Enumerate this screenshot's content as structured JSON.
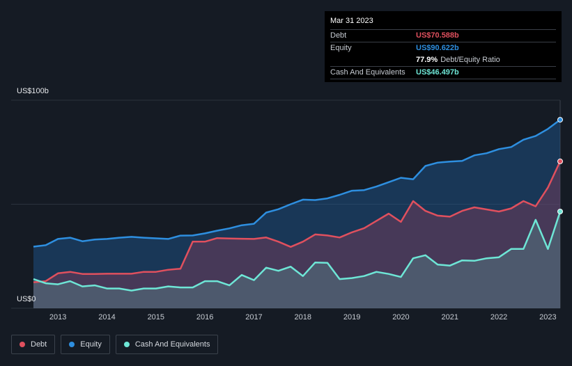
{
  "tooltip": {
    "date": "Mar 31 2023",
    "debt_label": "Debt",
    "debt_value": "US$70.588b",
    "equity_label": "Equity",
    "equity_value": "US$90.622b",
    "ratio_value": "77.9%",
    "ratio_label": "Debt/Equity Ratio",
    "cash_label": "Cash And Equivalents",
    "cash_value": "US$46.497b"
  },
  "colors": {
    "debt": "#e0505e",
    "equity": "#2e8fe0",
    "cash": "#6ee6d6",
    "background": "#151b24"
  },
  "legend": [
    {
      "label": "Debt",
      "color": "#e0505e"
    },
    {
      "label": "Equity",
      "color": "#2e8fe0"
    },
    {
      "label": "Cash And Equivalents",
      "color": "#6ee6d6"
    }
  ],
  "chart_data": {
    "type": "area",
    "ylabel_top": "US$100b",
    "ylabel_bottom": "US$0",
    "ylim": [
      0,
      100
    ],
    "xlim": [
      2012.5,
      2023.25
    ],
    "x_ticks": [
      "2013",
      "2014",
      "2015",
      "2016",
      "2017",
      "2018",
      "2019",
      "2020",
      "2021",
      "2022",
      "2023"
    ],
    "grid": true,
    "legend_position": "bottom-left",
    "series": [
      {
        "name": "Equity",
        "x": [
          2012.5,
          2012.75,
          2013.0,
          2013.25,
          2013.5,
          2013.75,
          2014.0,
          2014.25,
          2014.5,
          2014.75,
          2015.0,
          2015.25,
          2015.5,
          2015.75,
          2016.0,
          2016.25,
          2016.5,
          2016.75,
          2017.0,
          2017.25,
          2017.5,
          2017.75,
          2018.0,
          2018.25,
          2018.5,
          2018.75,
          2019.0,
          2019.25,
          2019.5,
          2019.75,
          2020.0,
          2020.25,
          2020.5,
          2020.75,
          2021.0,
          2021.25,
          2021.5,
          2021.75,
          2022.0,
          2022.25,
          2022.5,
          2022.75,
          2023.0,
          2023.25
        ],
        "values": [
          29.6,
          30.3,
          33.3,
          33.9,
          32.2,
          33.0,
          33.3,
          33.9,
          34.3,
          33.9,
          33.6,
          33.3,
          34.9,
          35.0,
          36.0,
          37.3,
          38.4,
          39.9,
          40.6,
          46.0,
          47.6,
          50.0,
          52.2,
          52.0,
          52.8,
          54.5,
          56.5,
          56.8,
          58.5,
          60.6,
          62.7,
          62.0,
          68.4,
          70.0,
          70.5,
          70.8,
          73.5,
          74.5,
          76.5,
          77.5,
          81.0,
          82.8,
          86.2,
          90.6
        ]
      },
      {
        "name": "Debt",
        "x": [
          2012.5,
          2012.75,
          2013.0,
          2013.25,
          2013.5,
          2013.75,
          2014.0,
          2014.25,
          2014.5,
          2014.75,
          2015.0,
          2015.25,
          2015.5,
          2015.75,
          2016.0,
          2016.25,
          2016.5,
          2016.75,
          2017.0,
          2017.25,
          2017.5,
          2017.75,
          2018.0,
          2018.25,
          2018.5,
          2018.75,
          2019.0,
          2019.25,
          2019.5,
          2019.75,
          2020.0,
          2020.25,
          2020.5,
          2020.75,
          2021.0,
          2021.25,
          2021.5,
          2021.75,
          2022.0,
          2022.25,
          2022.5,
          2022.75,
          2023.0,
          2023.25
        ],
        "values": [
          12.5,
          13.0,
          16.8,
          17.5,
          16.5,
          16.5,
          16.6,
          16.6,
          16.6,
          17.5,
          17.5,
          18.5,
          19.0,
          32.0,
          32.0,
          33.7,
          33.5,
          33.4,
          33.3,
          34.0,
          32.0,
          29.5,
          32.0,
          35.5,
          35.0,
          34.0,
          36.5,
          38.5,
          42.0,
          45.5,
          41.5,
          51.5,
          46.8,
          44.5,
          44.0,
          46.8,
          48.5,
          47.5,
          46.5,
          48.0,
          51.5,
          49.0,
          58.0,
          70.6
        ]
      },
      {
        "name": "Cash And Equivalents",
        "x": [
          2012.5,
          2012.75,
          2013.0,
          2013.25,
          2013.5,
          2013.75,
          2014.0,
          2014.25,
          2014.5,
          2014.75,
          2015.0,
          2015.25,
          2015.5,
          2015.75,
          2016.0,
          2016.25,
          2016.5,
          2016.75,
          2017.0,
          2017.25,
          2017.5,
          2017.75,
          2018.0,
          2018.25,
          2018.5,
          2018.75,
          2019.0,
          2019.25,
          2019.5,
          2019.75,
          2020.0,
          2020.25,
          2020.5,
          2020.75,
          2021.0,
          2021.25,
          2021.5,
          2021.75,
          2022.0,
          2022.25,
          2022.5,
          2022.75,
          2023.0,
          2023.25
        ],
        "values": [
          14.0,
          12.0,
          11.5,
          13.0,
          10.5,
          11.0,
          9.5,
          9.5,
          8.5,
          9.5,
          9.5,
          10.5,
          10.0,
          10.0,
          13.0,
          13.0,
          11.0,
          16.0,
          13.5,
          19.5,
          18.0,
          20.0,
          15.5,
          22.0,
          21.8,
          14.0,
          14.5,
          15.5,
          17.5,
          16.5,
          15.0,
          24.0,
          25.5,
          21.0,
          20.5,
          23.0,
          22.8,
          24.0,
          24.5,
          28.5,
          28.5,
          42.5,
          28.5,
          46.5
        ]
      }
    ]
  }
}
